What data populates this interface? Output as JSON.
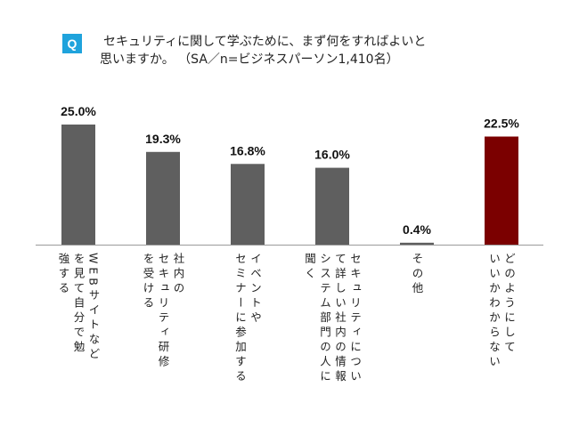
{
  "question": {
    "badge": "Q",
    "line1": "セキュリティに関して学ぶために、まず何をすればよいと",
    "line2": "思いますか。 （SA／n=ビジネスパーソン1,410名）"
  },
  "chart_data": {
    "type": "bar",
    "title": "",
    "xlabel": "",
    "ylabel": "",
    "ylim": [
      0,
      25
    ],
    "grid": false,
    "categories": [
      [
        "WEBサイトなど",
        "を見て自分で勉",
        "強する"
      ],
      [
        "社内の",
        "セキュリティ研修",
        "を受ける"
      ],
      [
        "イベントや",
        "セミナーに参加する"
      ],
      [
        "セキュリティについ",
        "て詳しい社内の情報",
        "システム部門の人に",
        "聞く"
      ],
      [
        "その他"
      ],
      [
        "どのようにして",
        "いいかわからない"
      ]
    ],
    "values": [
      25.0,
      19.3,
      16.8,
      16.0,
      0.4,
      22.5
    ],
    "value_labels": [
      "25.0%",
      "19.3%",
      "16.8%",
      "16.0%",
      "0.4%",
      "22.5%"
    ],
    "colors": [
      "#5f5f5f",
      "#5f5f5f",
      "#5f5f5f",
      "#5f5f5f",
      "#5f5f5f",
      "#7b0000"
    ],
    "axis_color": "#9a9a9a"
  }
}
